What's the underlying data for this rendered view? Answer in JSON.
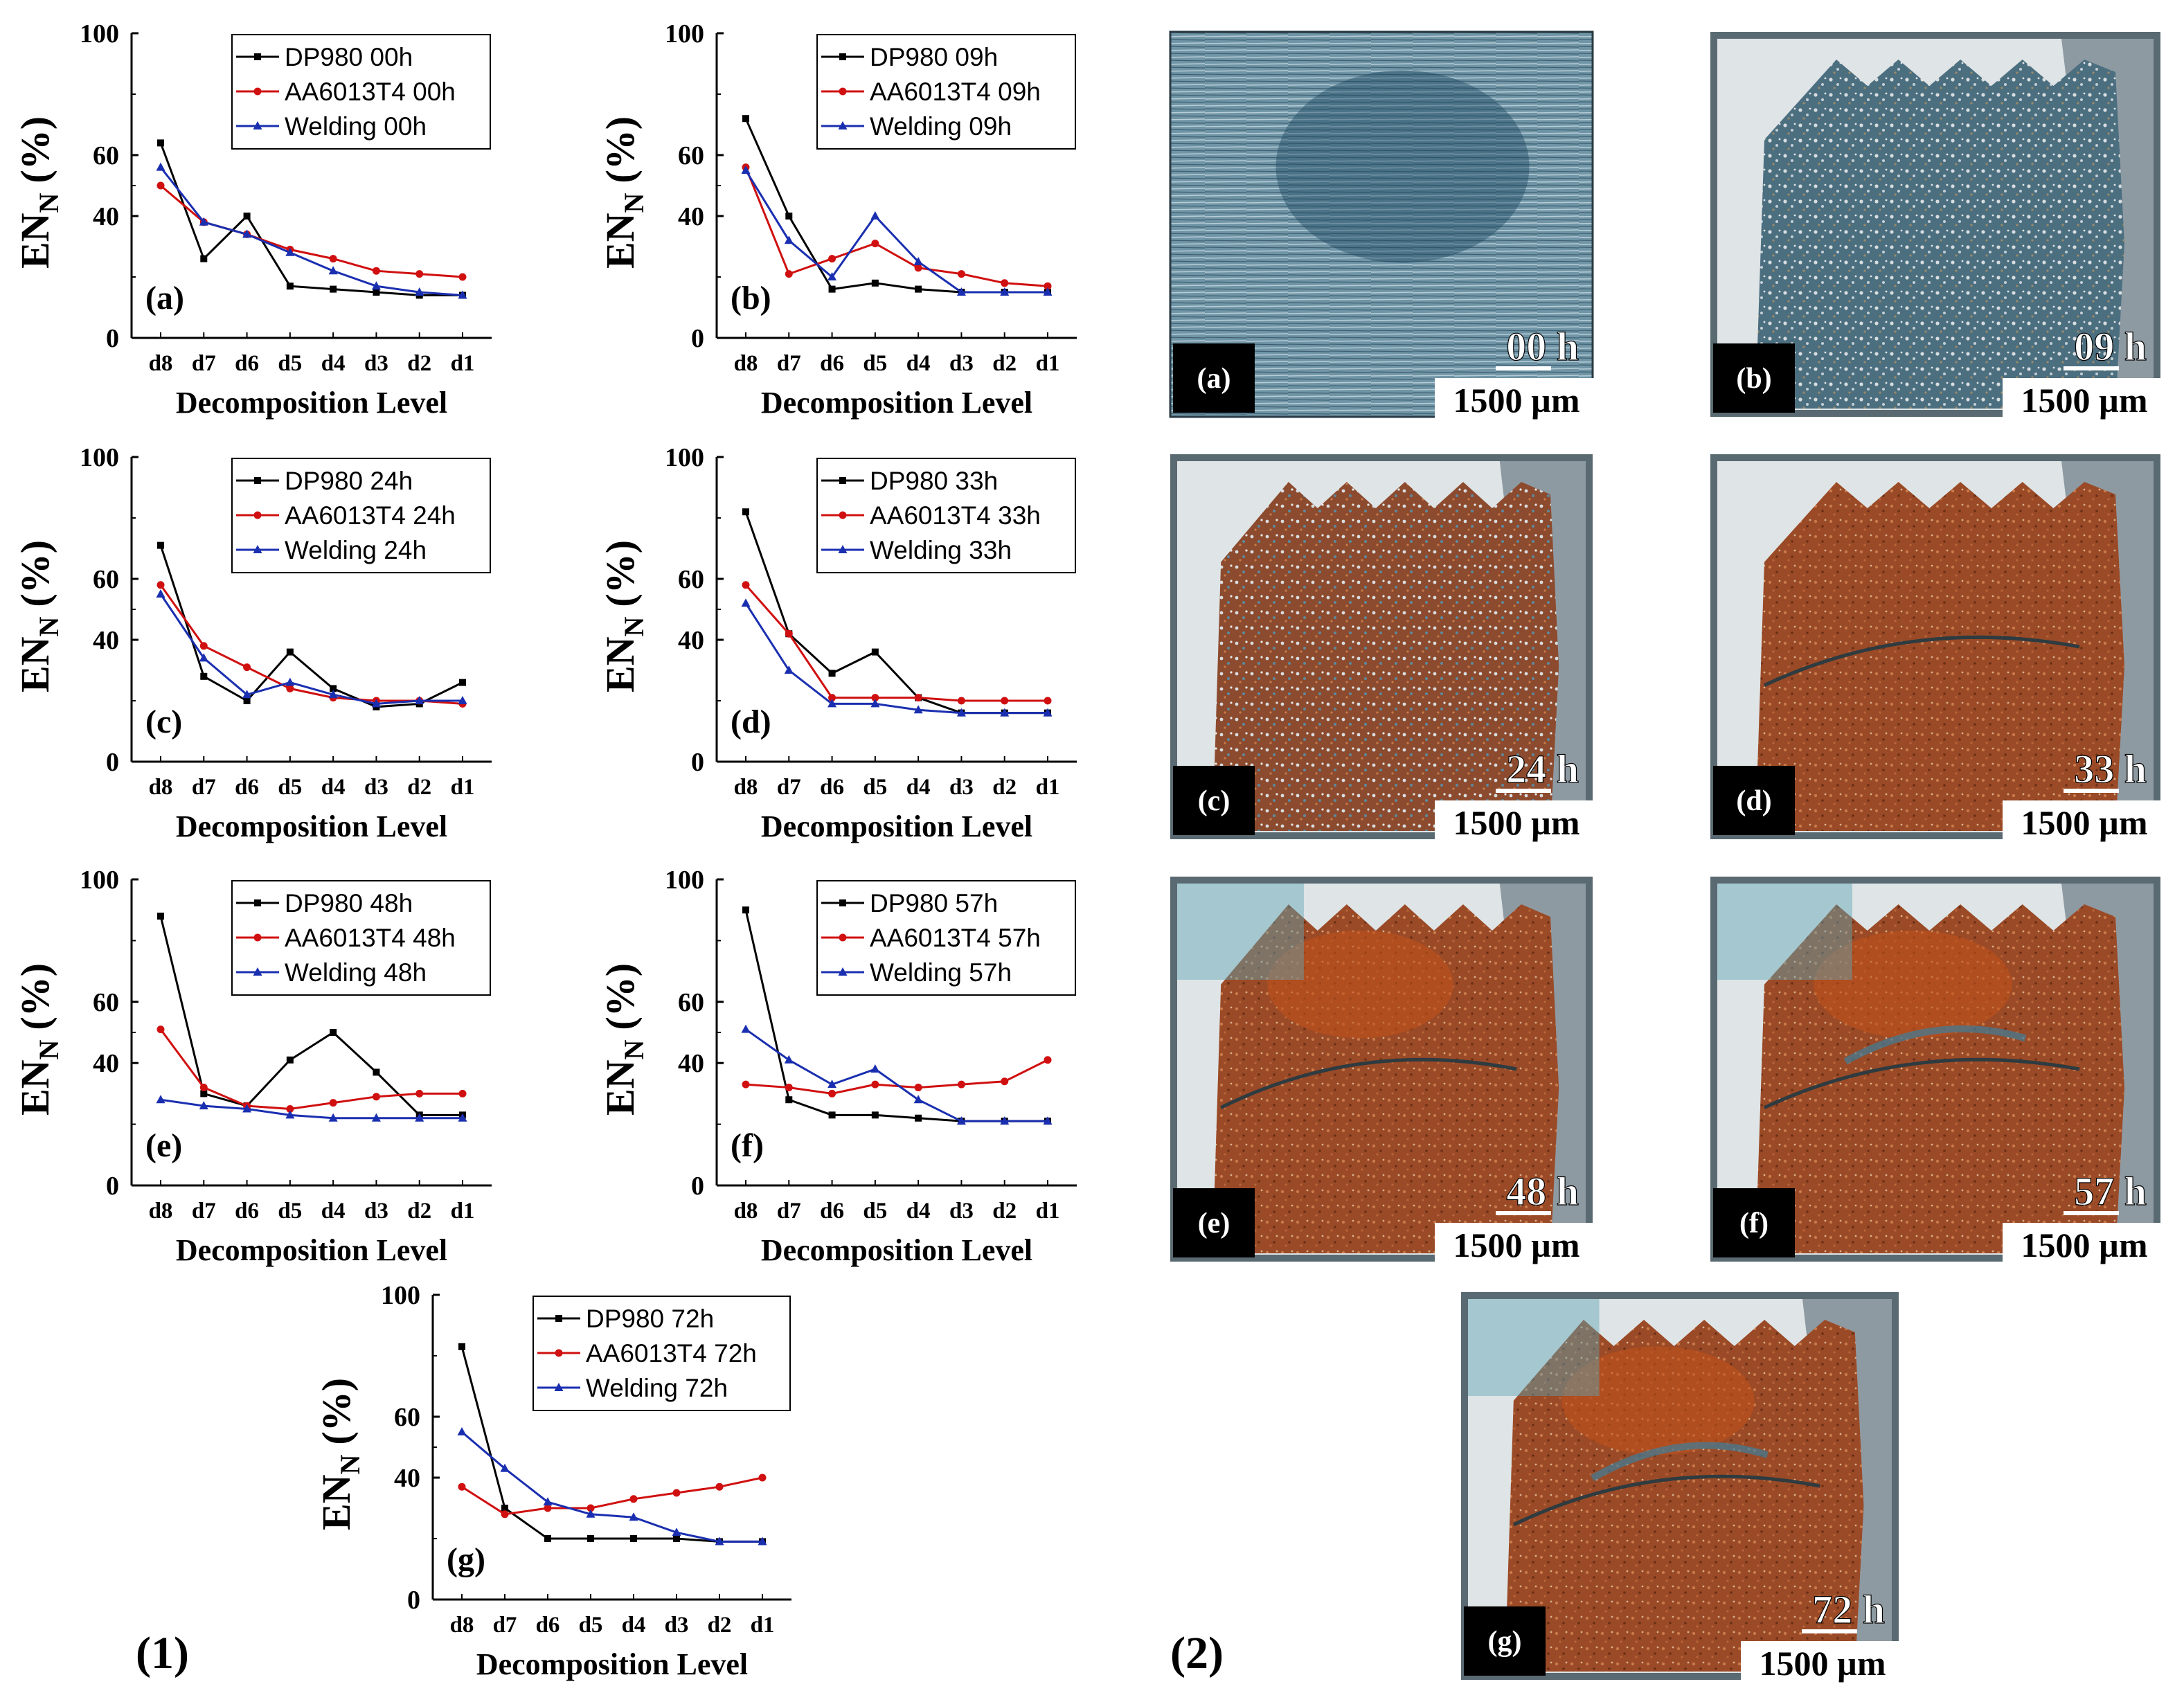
{
  "figure_labels": {
    "left": "(1)",
    "right": "(2)"
  },
  "colors": {
    "DP980": "#000000",
    "AA6013T4": "#d01010",
    "Welding": "#1a2fb0",
    "axis": "#000000",
    "photo_label_bg": "#000000",
    "photo_label_text": "#ffffff"
  },
  "common": {
    "xlabel": "Decomposition Level",
    "ylabel_main": "EN",
    "ylabel_sub": "N",
    "ylabel_unit": "(%)",
    "categories": [
      "d8",
      "d7",
      "d6",
      "d5",
      "d4",
      "d3",
      "d2",
      "d1"
    ],
    "yticks": [
      "100",
      "60",
      "40",
      "0"
    ],
    "ylim": [
      0,
      100
    ],
    "scale_bar_text": "1500 µm"
  },
  "chart_data": [
    {
      "type": "line",
      "panel": "(a)",
      "categories": [
        "d8",
        "d7",
        "d6",
        "d5",
        "d4",
        "d3",
        "d2",
        "d1"
      ],
      "series": [
        {
          "name": "DP980 00h",
          "values": [
            64,
            26,
            40,
            17,
            16,
            15,
            14,
            14
          ]
        },
        {
          "name": "AA6013T4 00h",
          "values": [
            50,
            38,
            34,
            29,
            26,
            22,
            21,
            20
          ]
        },
        {
          "name": "Welding 00h",
          "values": [
            56,
            38,
            34,
            28,
            22,
            17,
            15,
            14
          ]
        }
      ]
    },
    {
      "type": "line",
      "panel": "(b)",
      "categories": [
        "d8",
        "d7",
        "d6",
        "d5",
        "d4",
        "d3",
        "d2",
        "d1"
      ],
      "series": [
        {
          "name": "DP980 09h",
          "values": [
            72,
            40,
            16,
            18,
            16,
            15,
            15,
            15
          ]
        },
        {
          "name": "AA6013T4 09h",
          "values": [
            56,
            21,
            26,
            31,
            23,
            21,
            18,
            17
          ]
        },
        {
          "name": "Welding 09h",
          "values": [
            55,
            32,
            20,
            40,
            25,
            15,
            15,
            15
          ]
        }
      ]
    },
    {
      "type": "line",
      "panel": "(c)",
      "categories": [
        "d8",
        "d7",
        "d6",
        "d5",
        "d4",
        "d3",
        "d2",
        "d1"
      ],
      "series": [
        {
          "name": "DP980 24h",
          "values": [
            71,
            28,
            20,
            36,
            24,
            18,
            19,
            26
          ]
        },
        {
          "name": "AA6013T4 24h",
          "values": [
            58,
            38,
            31,
            24,
            21,
            20,
            20,
            19
          ]
        },
        {
          "name": "Welding 24h",
          "values": [
            55,
            34,
            22,
            26,
            22,
            19,
            20,
            20
          ]
        }
      ]
    },
    {
      "type": "line",
      "panel": "(d)",
      "categories": [
        "d8",
        "d7",
        "d6",
        "d5",
        "d4",
        "d3",
        "d2",
        "d1"
      ],
      "series": [
        {
          "name": "DP980 33h",
          "values": [
            82,
            42,
            29,
            36,
            21,
            16,
            16,
            16
          ]
        },
        {
          "name": "AA6013T4 33h",
          "values": [
            58,
            42,
            21,
            21,
            21,
            20,
            20,
            20
          ]
        },
        {
          "name": "Welding 33h",
          "values": [
            52,
            30,
            19,
            19,
            17,
            16,
            16,
            16
          ]
        }
      ]
    },
    {
      "type": "line",
      "panel": "(e)",
      "categories": [
        "d8",
        "d7",
        "d6",
        "d5",
        "d4",
        "d3",
        "d2",
        "d1"
      ],
      "series": [
        {
          "name": "DP980 48h",
          "values": [
            88,
            30,
            26,
            41,
            50,
            37,
            23,
            23
          ]
        },
        {
          "name": "AA6013T4 48h",
          "values": [
            51,
            32,
            26,
            25,
            27,
            29,
            30,
            30
          ]
        },
        {
          "name": "Welding 48h",
          "values": [
            28,
            26,
            25,
            23,
            22,
            22,
            22,
            22
          ]
        }
      ]
    },
    {
      "type": "line",
      "panel": "(f)",
      "categories": [
        "d8",
        "d7",
        "d6",
        "d5",
        "d4",
        "d3",
        "d2",
        "d1"
      ],
      "series": [
        {
          "name": "DP980 57h",
          "values": [
            90,
            28,
            23,
            23,
            22,
            21,
            21,
            21
          ]
        },
        {
          "name": "AA6013T4 57h",
          "values": [
            33,
            32,
            30,
            33,
            32,
            33,
            34,
            41
          ]
        },
        {
          "name": "Welding 57h",
          "values": [
            51,
            41,
            33,
            38,
            28,
            21,
            21,
            21
          ]
        }
      ]
    },
    {
      "type": "line",
      "panel": "(g)",
      "categories": [
        "d8",
        "d7",
        "d6",
        "d5",
        "d4",
        "d3",
        "d2",
        "d1"
      ],
      "series": [
        {
          "name": "DP980 72h",
          "values": [
            83,
            30,
            20,
            20,
            20,
            20,
            19,
            19
          ]
        },
        {
          "name": "AA6013T4 72h",
          "values": [
            37,
            28,
            30,
            30,
            33,
            35,
            37,
            40
          ]
        },
        {
          "name": "Welding 72h",
          "values": [
            55,
            43,
            32,
            28,
            27,
            22,
            19,
            19
          ]
        }
      ]
    }
  ],
  "photos": [
    {
      "label": "(a)",
      "time": "00 h"
    },
    {
      "label": "(b)",
      "time": "09 h"
    },
    {
      "label": "(c)",
      "time": "24 h"
    },
    {
      "label": "(d)",
      "time": "33 h"
    },
    {
      "label": "(e)",
      "time": "48 h"
    },
    {
      "label": "(f)",
      "time": "57 h"
    },
    {
      "label": "(g)",
      "time": "72 h"
    }
  ]
}
